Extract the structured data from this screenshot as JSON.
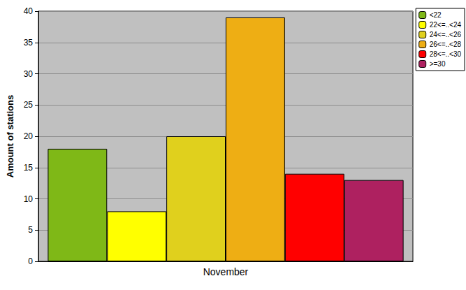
{
  "chart_data": {
    "type": "bar",
    "categories": [
      "November"
    ],
    "series": [
      {
        "name": "<22",
        "color": "#7fb817",
        "values": [
          18
        ]
      },
      {
        "name": "22<=..<24",
        "color": "#ffff00",
        "values": [
          8
        ]
      },
      {
        "name": "24<=..<26",
        "color": "#e0d01d",
        "values": [
          20
        ]
      },
      {
        "name": "26<=..<28",
        "color": "#eeae14",
        "values": [
          39
        ]
      },
      {
        "name": "28<=..<30",
        "color": "#ff0000",
        "values": [
          14
        ]
      },
      {
        "name": ">=30",
        "color": "#ae2160",
        "values": [
          13
        ]
      }
    ],
    "ylabel": "Amount of stations",
    "ylim": [
      0,
      40
    ],
    "yticks": [
      0,
      5,
      10,
      15,
      20,
      25,
      30,
      35,
      40
    ],
    "grid": true,
    "legend": "top-right"
  }
}
